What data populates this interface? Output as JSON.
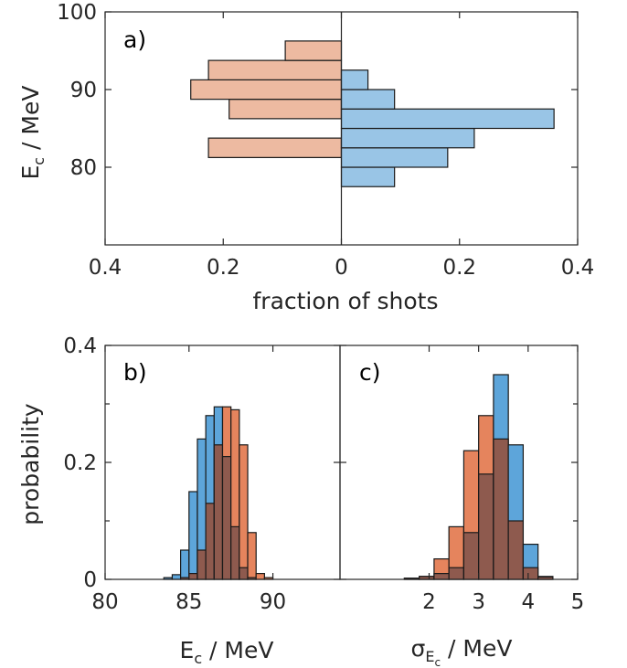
{
  "colors": {
    "blue": "#5DA5DA",
    "orange": "#E5845D",
    "salmon": "#EDBAA1",
    "lightblue": "#99C5E6",
    "overlap": "#8E5A4E"
  },
  "chart_data": [
    {
      "id": "a",
      "type": "bar",
      "panel_label": "a)",
      "orientation": "horizontal",
      "xlabel": "fraction of shots",
      "ylabel_main": "E",
      "ylabel_sub": "c",
      "ylabel_unit": " / MeV",
      "xlim": [
        -0.4,
        0.4
      ],
      "ylim": [
        70,
        100
      ],
      "xtick_values": [
        -0.4,
        -0.2,
        0,
        0.2,
        0.4
      ],
      "xtick_labels": [
        "0.4",
        "0.2",
        "0",
        "0.2",
        "0.4"
      ],
      "ytick_values": [
        80,
        90,
        100
      ],
      "ytick_labels": [
        "80",
        "90",
        "100"
      ],
      "bin_width": 2.5,
      "left_series": {
        "bin_centers": [
          82.5,
          85,
          87.5,
          90,
          92.5,
          95
        ],
        "values": [
          0.225,
          0.0,
          0.19,
          0.255,
          0.225,
          0.095
        ]
      },
      "right_series": {
        "bin_centers": [
          78.75,
          81.25,
          83.75,
          86.25,
          88.75,
          91.25,
          93.75
        ],
        "values": [
          0.09,
          0.18,
          0.225,
          0.36,
          0.09,
          0.045,
          0.0
        ]
      }
    },
    {
      "id": "b",
      "type": "bar",
      "panel_label": "b)",
      "xlabel_main": "E",
      "xlabel_sub": "c",
      "xlabel_unit": " / MeV",
      "ylabel": "probability",
      "xlim": [
        80,
        94
      ],
      "ylim": [
        0,
        0.4
      ],
      "xtick_values": [
        80,
        85,
        90
      ],
      "xtick_labels": [
        "80",
        "85",
        "90"
      ],
      "ytick_values": [
        0,
        0.2,
        0.4
      ],
      "ytick_labels": [
        "0",
        "0.2",
        "0.4"
      ],
      "bin_width": 0.5,
      "series_blue": {
        "bin_starts": [
          83.5,
          84.0,
          84.5,
          85.0,
          85.5,
          86.0,
          86.5,
          87.0,
          87.5,
          88.0,
          88.5
        ],
        "values": [
          0.003,
          0.008,
          0.05,
          0.15,
          0.24,
          0.28,
          0.295,
          0.21,
          0.09,
          0.02,
          0.003
        ]
      },
      "series_orange": {
        "bin_starts": [
          84.5,
          85.0,
          85.5,
          86.0,
          86.5,
          87.0,
          87.5,
          88.0,
          88.5,
          89.0,
          89.5
        ],
        "values": [
          0.003,
          0.01,
          0.05,
          0.13,
          0.23,
          0.295,
          0.29,
          0.23,
          0.08,
          0.01,
          0.003
        ]
      }
    },
    {
      "id": "c",
      "type": "bar",
      "panel_label": "c)",
      "xlabel_main": "σ",
      "xlabel_sub1": "E",
      "xlabel_sub2": "c",
      "xlabel_unit": " / MeV",
      "xlim": [
        0.2,
        5
      ],
      "ylim": [
        0,
        0.4
      ],
      "xtick_values": [
        2,
        3,
        4,
        5
      ],
      "xtick_labels": [
        "2",
        "3",
        "4",
        "5"
      ],
      "bin_width": 0.3,
      "series_blue": {
        "bin_starts": [
          1.5,
          1.8,
          2.1,
          2.4,
          2.7,
          3.0,
          3.3,
          3.6,
          3.9,
          4.2
        ],
        "values": [
          0.002,
          0.005,
          0.01,
          0.02,
          0.08,
          0.18,
          0.35,
          0.23,
          0.06,
          0.005
        ]
      },
      "series_orange": {
        "bin_starts": [
          1.5,
          1.8,
          2.1,
          2.4,
          2.7,
          3.0,
          3.3,
          3.6,
          3.9,
          4.2
        ],
        "values": [
          0.002,
          0.005,
          0.035,
          0.09,
          0.22,
          0.28,
          0.24,
          0.1,
          0.02,
          0.004
        ]
      }
    }
  ]
}
